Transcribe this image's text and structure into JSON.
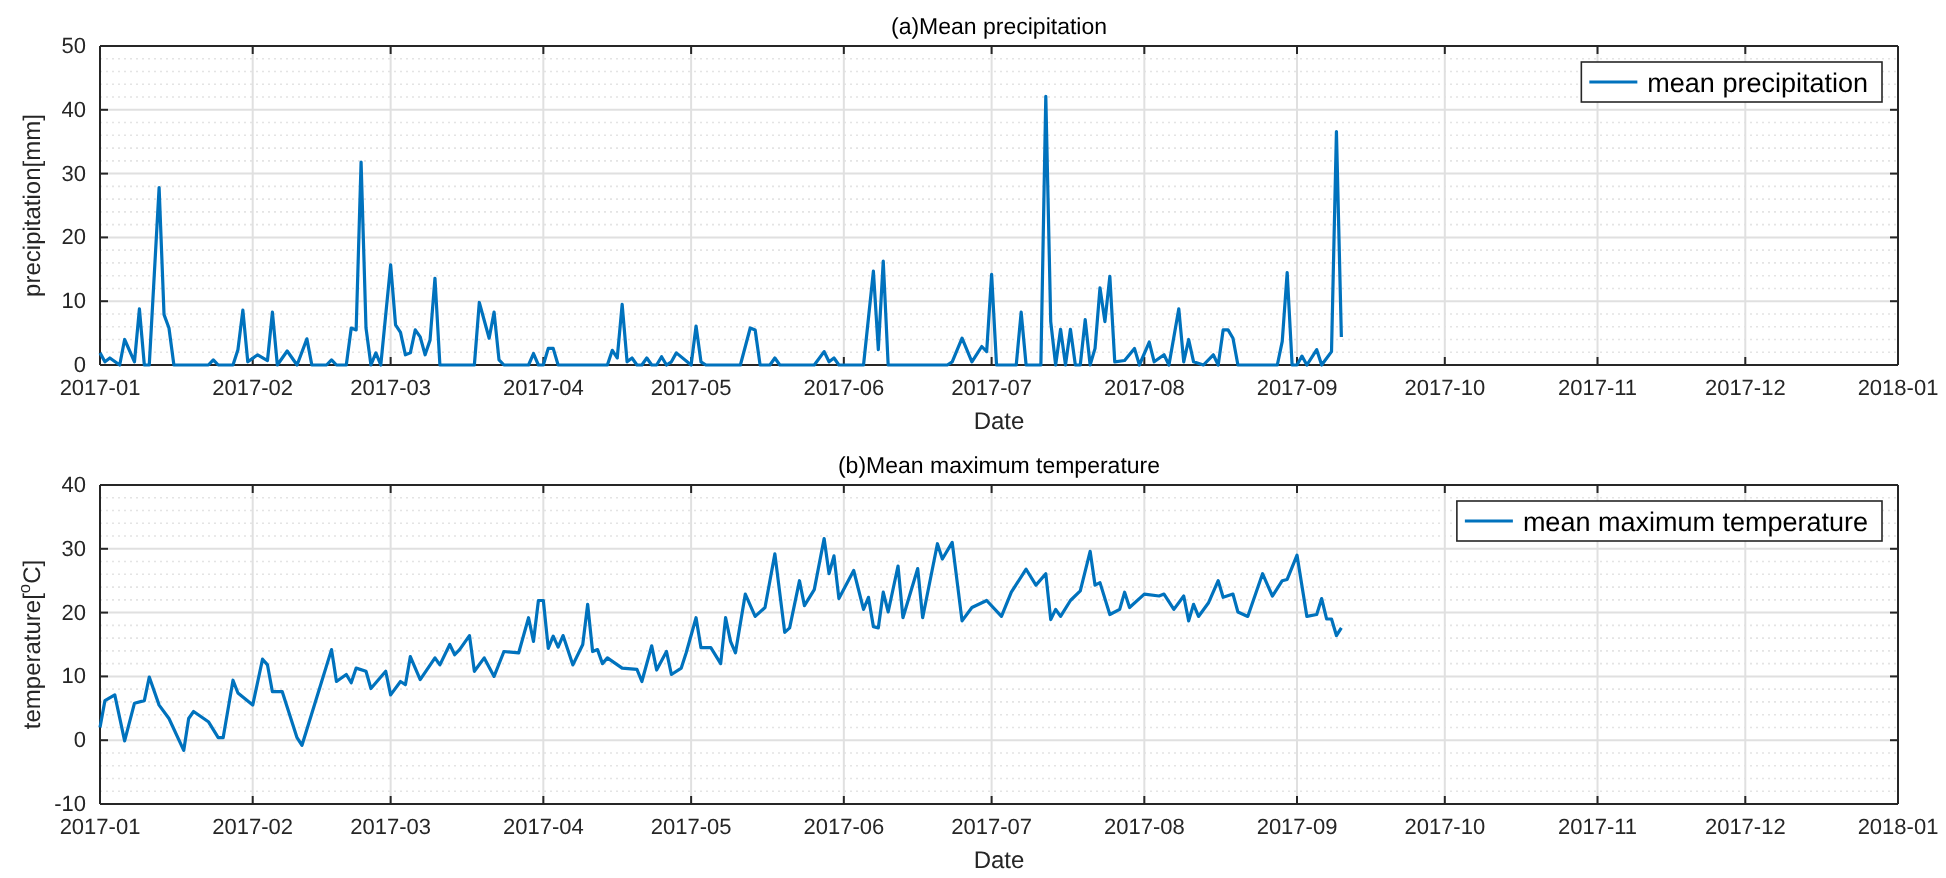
{
  "chart_data": [
    {
      "type": "line",
      "title": "(a)Mean precipitation",
      "xlabel": "Date",
      "ylabel": "precipitation[mm]",
      "xlim": [
        "2017-01-01",
        "2018-01-01"
      ],
      "xticks": [
        "2017-01",
        "2017-02",
        "2017-03",
        "2017-04",
        "2017-05",
        "2017-06",
        "2017-07",
        "2017-08",
        "2017-09",
        "2017-10",
        "2017-11",
        "2017-12",
        "2018-01"
      ],
      "ylim": [
        0,
        50
      ],
      "yticks": [
        0,
        10,
        20,
        30,
        40,
        50
      ],
      "grid": true,
      "legend": "top right",
      "marker": "none",
      "line_style": "solid",
      "series": [
        {
          "name": "mean precipitation",
          "color": "#0072bd",
          "x": [
            "2017-01-01",
            "2017-01-02",
            "2017-01-03",
            "2017-01-05",
            "2017-01-06",
            "2017-01-08",
            "2017-01-09",
            "2017-01-10",
            "2017-01-11",
            "2017-01-13",
            "2017-01-14",
            "2017-01-15",
            "2017-01-16",
            "2017-01-23",
            "2017-01-24",
            "2017-01-25",
            "2017-01-28",
            "2017-01-29",
            "2017-01-30",
            "2017-01-31",
            "2017-02-02",
            "2017-02-04",
            "2017-02-05",
            "2017-02-06",
            "2017-02-08",
            "2017-02-10",
            "2017-02-12",
            "2017-02-13",
            "2017-02-16",
            "2017-02-17",
            "2017-02-18",
            "2017-02-20",
            "2017-02-21",
            "2017-02-22",
            "2017-02-23",
            "2017-02-24",
            "2017-02-25",
            "2017-02-26",
            "2017-02-27",
            "2017-03-01",
            "2017-03-02",
            "2017-03-03",
            "2017-03-04",
            "2017-03-05",
            "2017-03-06",
            "2017-03-07",
            "2017-03-08",
            "2017-03-09",
            "2017-03-10",
            "2017-03-11",
            "2017-03-18",
            "2017-03-19",
            "2017-03-21",
            "2017-03-22",
            "2017-03-23",
            "2017-03-24",
            "2017-03-29",
            "2017-03-30",
            "2017-03-31",
            "2017-04-01",
            "2017-04-02",
            "2017-04-03",
            "2017-04-04",
            "2017-04-14",
            "2017-04-15",
            "2017-04-16",
            "2017-04-17",
            "2017-04-18",
            "2017-04-19",
            "2017-04-20",
            "2017-04-21",
            "2017-04-22",
            "2017-04-23",
            "2017-04-24",
            "2017-04-25",
            "2017-04-26",
            "2017-04-27",
            "2017-04-28",
            "2017-05-01",
            "2017-05-02",
            "2017-05-03",
            "2017-05-04",
            "2017-05-11",
            "2017-05-13",
            "2017-05-14",
            "2017-05-15",
            "2017-05-17",
            "2017-05-18",
            "2017-05-19",
            "2017-05-26",
            "2017-05-28",
            "2017-05-29",
            "2017-05-30",
            "2017-05-31",
            "2017-06-05",
            "2017-06-07",
            "2017-06-08",
            "2017-06-09",
            "2017-06-10",
            "2017-06-22",
            "2017-06-23",
            "2017-06-25",
            "2017-06-27",
            "2017-06-29",
            "2017-06-30",
            "2017-07-01",
            "2017-07-02",
            "2017-07-06",
            "2017-07-07",
            "2017-07-08",
            "2017-07-11",
            "2017-07-12",
            "2017-07-13",
            "2017-07-14",
            "2017-07-15",
            "2017-07-16",
            "2017-07-17",
            "2017-07-18",
            "2017-07-19",
            "2017-07-20",
            "2017-07-21",
            "2017-07-22",
            "2017-07-23",
            "2017-07-24",
            "2017-07-25",
            "2017-07-26",
            "2017-07-28",
            "2017-07-30",
            "2017-07-31",
            "2017-08-02",
            "2017-08-03",
            "2017-08-05",
            "2017-08-06",
            "2017-08-08",
            "2017-08-09",
            "2017-08-10",
            "2017-08-11",
            "2017-08-13",
            "2017-08-15",
            "2017-08-16",
            "2017-08-17",
            "2017-08-18",
            "2017-08-19",
            "2017-08-20",
            "2017-08-28",
            "2017-08-29",
            "2017-08-30",
            "2017-08-31",
            "2017-09-01",
            "2017-09-02",
            "2017-09-03",
            "2017-09-05",
            "2017-09-06",
            "2017-09-08",
            "2017-09-09",
            "2017-09-10"
          ],
          "values": [
            1.9,
            0.5,
            1.1,
            0,
            4.0,
            0.5,
            8.8,
            0,
            0,
            27.8,
            7.9,
            5.8,
            0,
            0,
            0.8,
            0,
            0,
            2.4,
            8.6,
            0.5,
            1.6,
            0.7,
            8.3,
            0,
            2.2,
            0,
            4.1,
            0,
            0,
            0.8,
            0,
            0,
            5.8,
            5.5,
            31.8,
            5.8,
            0,
            1.9,
            0,
            15.7,
            6.3,
            5.1,
            1.6,
            1.9,
            5.5,
            4.4,
            1.6,
            3.9,
            13.6,
            0,
            0,
            9.8,
            4.2,
            8.3,
            0.8,
            0,
            0,
            1.8,
            0,
            0,
            2.6,
            2.6,
            0,
            0,
            2.3,
            1.1,
            9.5,
            0.5,
            1.1,
            0,
            0,
            1.1,
            0,
            0,
            1.3,
            0,
            0.5,
            1.9,
            0,
            6.1,
            0.5,
            0,
            0,
            5.8,
            5.5,
            0,
            0,
            1.1,
            0,
            0,
            2.1,
            0.5,
            1.1,
            0,
            0,
            14.7,
            2.4,
            16.3,
            0,
            0,
            0.5,
            4.2,
            0.5,
            2.9,
            2.1,
            14.2,
            0,
            0,
            8.3,
            0,
            0,
            42.1,
            6.8,
            0,
            5.6,
            0,
            5.6,
            0,
            0,
            7.1,
            0,
            2.6,
            12.1,
            6.8,
            13.9,
            0.5,
            0.7,
            2.6,
            0,
            3.6,
            0.5,
            1.6,
            0,
            8.8,
            0.5,
            4.0,
            0.5,
            0,
            1.6,
            0,
            5.5,
            5.5,
            4.2,
            0,
            0,
            3.7,
            14.5,
            0,
            0,
            1.4,
            0,
            2.4,
            0,
            2.1,
            36.6,
            4.4
          ]
        }
      ]
    },
    {
      "type": "line",
      "title": "(b)Mean maximum temperature",
      "xlabel": "Date",
      "ylabel": "temperature[$^{o}$C]",
      "xlim": [
        "2017-01-01",
        "2018-01-01"
      ],
      "xticks": [
        "2017-01",
        "2017-02",
        "2017-03",
        "2017-04",
        "2017-05",
        "2017-06",
        "2017-07",
        "2017-08",
        "2017-09",
        "2017-10",
        "2017-11",
        "2017-12",
        "2018-01"
      ],
      "ylim": [
        -10,
        40
      ],
      "yticks": [
        -10,
        0,
        10,
        20,
        30,
        40
      ],
      "grid": true,
      "legend": "top right",
      "marker": "none",
      "line_style": "solid",
      "series": [
        {
          "name": "mean maximum temperature",
          "color": "#0072bd",
          "x": [
            "2017-01-01",
            "2017-01-02",
            "2017-01-04",
            "2017-01-06",
            "2017-01-08",
            "2017-01-10",
            "2017-01-11",
            "2017-01-13",
            "2017-01-15",
            "2017-01-18",
            "2017-01-19",
            "2017-01-20",
            "2017-01-23",
            "2017-01-25",
            "2017-01-26",
            "2017-01-28",
            "2017-01-29",
            "2017-02-01",
            "2017-02-03",
            "2017-02-04",
            "2017-02-05",
            "2017-02-07",
            "2017-02-10",
            "2017-02-11",
            "2017-02-15",
            "2017-02-17",
            "2017-02-18",
            "2017-02-20",
            "2017-02-21",
            "2017-02-22",
            "2017-02-24",
            "2017-02-25",
            "2017-02-28",
            "2017-03-01",
            "2017-03-03",
            "2017-03-04",
            "2017-03-05",
            "2017-03-07",
            "2017-03-10",
            "2017-03-11",
            "2017-03-13",
            "2017-03-14",
            "2017-03-15",
            "2017-03-17",
            "2017-03-18",
            "2017-03-20",
            "2017-03-22",
            "2017-03-24",
            "2017-03-27",
            "2017-03-29",
            "2017-03-30",
            "2017-03-31",
            "2017-04-01",
            "2017-04-02",
            "2017-04-03",
            "2017-04-04",
            "2017-04-05",
            "2017-04-07",
            "2017-04-09",
            "2017-04-10",
            "2017-04-11",
            "2017-04-12",
            "2017-04-13",
            "2017-04-14",
            "2017-04-17",
            "2017-04-20",
            "2017-04-21",
            "2017-04-23",
            "2017-04-24",
            "2017-04-26",
            "2017-04-27",
            "2017-04-29",
            "2017-04-30",
            "2017-05-02",
            "2017-05-03",
            "2017-05-05",
            "2017-05-07",
            "2017-05-08",
            "2017-05-09",
            "2017-05-10",
            "2017-05-12",
            "2017-05-14",
            "2017-05-16",
            "2017-05-18",
            "2017-05-20",
            "2017-05-21",
            "2017-05-23",
            "2017-05-24",
            "2017-05-26",
            "2017-05-28",
            "2017-05-29",
            "2017-05-30",
            "2017-05-31",
            "2017-06-03",
            "2017-06-05",
            "2017-06-06",
            "2017-06-07",
            "2017-06-08",
            "2017-06-09",
            "2017-06-10",
            "2017-06-12",
            "2017-06-13",
            "2017-06-16",
            "2017-06-17",
            "2017-06-20",
            "2017-06-21",
            "2017-06-23",
            "2017-06-25",
            "2017-06-27",
            "2017-06-30",
            "2017-07-03",
            "2017-07-05",
            "2017-07-08",
            "2017-07-10",
            "2017-07-12",
            "2017-07-13",
            "2017-07-14",
            "2017-07-15",
            "2017-07-17",
            "2017-07-19",
            "2017-07-21",
            "2017-07-22",
            "2017-07-23",
            "2017-07-25",
            "2017-07-27",
            "2017-07-28",
            "2017-07-29",
            "2017-08-01",
            "2017-08-04",
            "2017-08-05",
            "2017-08-07",
            "2017-08-09",
            "2017-08-10",
            "2017-08-11",
            "2017-08-12",
            "2017-08-14",
            "2017-08-16",
            "2017-08-17",
            "2017-08-19",
            "2017-08-20",
            "2017-08-22",
            "2017-08-25",
            "2017-08-27",
            "2017-08-29",
            "2017-08-30",
            "2017-09-01",
            "2017-09-03",
            "2017-09-05",
            "2017-09-06",
            "2017-09-07",
            "2017-09-08",
            "2017-09-09",
            "2017-09-10"
          ],
          "values": [
            2.0,
            6.2,
            7.1,
            -0.1,
            5.8,
            6.2,
            9.9,
            5.5,
            3.4,
            -1.6,
            3.4,
            4.5,
            2.9,
            0.4,
            0.4,
            9.4,
            7.4,
            5.5,
            12.7,
            11.8,
            7.6,
            7.6,
            0.4,
            -0.8,
            9.2,
            14.2,
            9.2,
            10.3,
            9.0,
            11.3,
            10.8,
            8.1,
            10.8,
            7.1,
            9.2,
            8.7,
            13.1,
            9.5,
            12.9,
            11.8,
            15.0,
            13.4,
            14.2,
            16.4,
            10.8,
            12.9,
            10.0,
            13.9,
            13.7,
            19.2,
            15.5,
            21.9,
            21.9,
            14.4,
            16.3,
            14.6,
            16.4,
            11.8,
            15.0,
            21.3,
            13.9,
            14.2,
            12.0,
            12.9,
            11.3,
            11.1,
            9.2,
            14.8,
            11.0,
            13.9,
            10.3,
            11.3,
            13.7,
            19.2,
            14.5,
            14.5,
            12.0,
            19.2,
            15.5,
            13.7,
            22.9,
            19.4,
            20.8,
            29.2,
            16.9,
            17.6,
            25.0,
            21.1,
            23.6,
            31.6,
            26.1,
            28.9,
            22.2,
            26.6,
            20.5,
            22.4,
            17.8,
            17.6,
            23.2,
            20.1,
            27.3,
            19.2,
            26.9,
            19.2,
            30.8,
            28.4,
            31.0,
            18.7,
            20.8,
            21.9,
            19.4,
            23.2,
            26.8,
            24.3,
            26.1,
            18.9,
            20.5,
            19.4,
            21.9,
            23.4,
            29.6,
            24.3,
            24.7,
            19.7,
            20.5,
            23.2,
            20.8,
            22.9,
            22.6,
            22.9,
            20.5,
            22.6,
            18.7,
            21.3,
            19.4,
            21.5,
            25.0,
            22.4,
            22.9,
            20.1,
            19.4,
            26.1,
            22.6,
            25.0,
            25.2,
            29.0,
            19.4,
            19.7,
            22.2,
            19.0,
            19.0,
            16.4,
            17.6
          ]
        }
      ]
    }
  ]
}
